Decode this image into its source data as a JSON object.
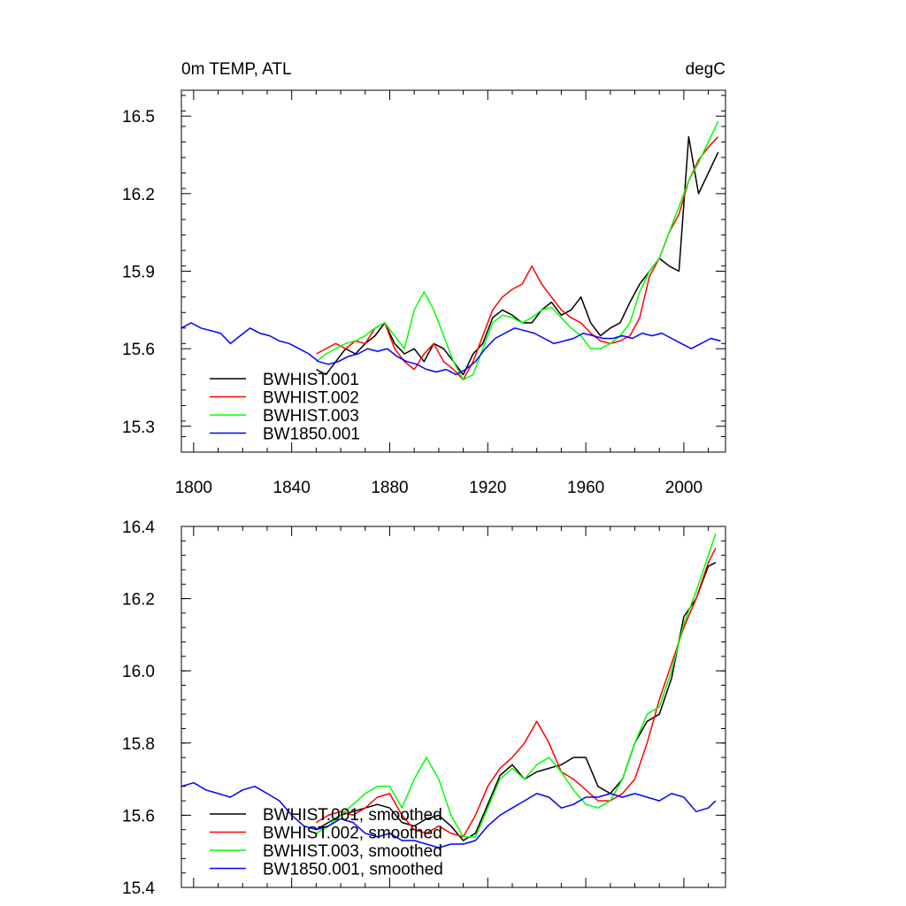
{
  "chart_data": [
    {
      "type": "line",
      "title_left": "0m TEMP, ATL",
      "title_right": "degC",
      "xlim": [
        1795,
        2017
      ],
      "ylim": [
        15.2,
        16.6
      ],
      "x_ticks": [
        1800,
        1840,
        1880,
        1920,
        1960,
        2000
      ],
      "x_tick_labels": [
        "1800",
        "1840",
        "1880",
        "1920",
        "1960",
        "2000"
      ],
      "y_ticks": [
        15.3,
        15.6,
        15.9,
        16.2,
        16.5
      ],
      "y_tick_labels": [
        "15.3",
        "15.6",
        "15.9",
        "16.2",
        "16.5"
      ],
      "legend_position": "bottom-left",
      "series": [
        {
          "name": "BWHIST.001",
          "color": "#000000",
          "x": [
            1850,
            1854,
            1858,
            1862,
            1866,
            1870,
            1874,
            1878,
            1882,
            1886,
            1890,
            1894,
            1898,
            1902,
            1906,
            1910,
            1914,
            1918,
            1922,
            1926,
            1930,
            1934,
            1938,
            1942,
            1946,
            1950,
            1954,
            1958,
            1962,
            1966,
            1970,
            1974,
            1978,
            1982,
            1986,
            1990,
            1994,
            1998,
            2002,
            2006,
            2010,
            2014
          ],
          "y": [
            15.52,
            15.5,
            15.55,
            15.6,
            15.58,
            15.62,
            15.65,
            15.7,
            15.62,
            15.58,
            15.6,
            15.55,
            15.62,
            15.6,
            15.55,
            15.5,
            15.58,
            15.62,
            15.72,
            15.75,
            15.73,
            15.7,
            15.7,
            15.75,
            15.78,
            15.73,
            15.75,
            15.8,
            15.7,
            15.65,
            15.68,
            15.7,
            15.78,
            15.85,
            15.9,
            15.95,
            15.92,
            15.9,
            16.42,
            16.2,
            16.28,
            16.36
          ]
        },
        {
          "name": "BWHIST.002",
          "color": "#ff0000",
          "x": [
            1850,
            1854,
            1858,
            1862,
            1866,
            1870,
            1874,
            1878,
            1882,
            1886,
            1890,
            1894,
            1898,
            1902,
            1906,
            1910,
            1914,
            1918,
            1922,
            1926,
            1930,
            1934,
            1938,
            1942,
            1946,
            1950,
            1954,
            1958,
            1962,
            1966,
            1970,
            1974,
            1978,
            1982,
            1986,
            1990,
            1994,
            1998,
            2002,
            2006,
            2010,
            2014
          ],
          "y": [
            15.58,
            15.6,
            15.62,
            15.6,
            15.63,
            15.62,
            15.68,
            15.7,
            15.6,
            15.55,
            15.52,
            15.58,
            15.62,
            15.55,
            15.52,
            15.48,
            15.55,
            15.65,
            15.75,
            15.8,
            15.83,
            15.85,
            15.92,
            15.85,
            15.8,
            15.75,
            15.72,
            15.7,
            15.66,
            15.63,
            15.62,
            15.63,
            15.65,
            15.72,
            15.88,
            15.95,
            16.05,
            16.12,
            16.25,
            16.33,
            16.38,
            16.42
          ]
        },
        {
          "name": "BWHIST.003",
          "color": "#00ff00",
          "x": [
            1850,
            1854,
            1858,
            1862,
            1866,
            1870,
            1874,
            1878,
            1882,
            1886,
            1890,
            1894,
            1898,
            1902,
            1906,
            1910,
            1914,
            1918,
            1922,
            1926,
            1930,
            1934,
            1938,
            1942,
            1946,
            1950,
            1954,
            1958,
            1962,
            1966,
            1970,
            1974,
            1978,
            1982,
            1986,
            1990,
            1994,
            1998,
            2002,
            2006,
            2010,
            2014
          ],
          "y": [
            15.55,
            15.58,
            15.6,
            15.62,
            15.63,
            15.65,
            15.68,
            15.7,
            15.65,
            15.6,
            15.75,
            15.82,
            15.75,
            15.65,
            15.55,
            15.48,
            15.5,
            15.6,
            15.7,
            15.73,
            15.72,
            15.7,
            15.72,
            15.75,
            15.76,
            15.72,
            15.68,
            15.65,
            15.6,
            15.6,
            15.62,
            15.65,
            15.7,
            15.82,
            15.9,
            15.95,
            16.05,
            16.15,
            16.25,
            16.32,
            16.4,
            16.48
          ]
        },
        {
          "name": "BW1850.001",
          "color": "#0000ff",
          "x": [
            1795,
            1799,
            1803,
            1807,
            1811,
            1815,
            1819,
            1823,
            1827,
            1831,
            1835,
            1839,
            1843,
            1847,
            1851,
            1855,
            1859,
            1863,
            1867,
            1871,
            1875,
            1879,
            1883,
            1887,
            1891,
            1895,
            1899,
            1903,
            1907,
            1911,
            1915,
            1919,
            1923,
            1927,
            1931,
            1935,
            1939,
            1943,
            1947,
            1951,
            1955,
            1959,
            1963,
            1967,
            1971,
            1975,
            1979,
            1983,
            1987,
            1991,
            1995,
            1999,
            2003,
            2007,
            2011,
            2015
          ],
          "y": [
            15.68,
            15.7,
            15.68,
            15.67,
            15.66,
            15.62,
            15.65,
            15.68,
            15.66,
            15.65,
            15.63,
            15.62,
            15.6,
            15.58,
            15.55,
            15.54,
            15.55,
            15.57,
            15.58,
            15.6,
            15.59,
            15.6,
            15.57,
            15.55,
            15.54,
            15.52,
            15.51,
            15.52,
            15.5,
            15.52,
            15.55,
            15.6,
            15.64,
            15.66,
            15.68,
            15.67,
            15.66,
            15.64,
            15.62,
            15.63,
            15.64,
            15.66,
            15.65,
            15.64,
            15.64,
            15.65,
            15.64,
            15.66,
            15.65,
            15.66,
            15.64,
            15.62,
            15.6,
            15.62,
            15.64,
            15.63
          ]
        }
      ]
    },
    {
      "type": "line",
      "xlim": [
        1795,
        2017
      ],
      "ylim": [
        15.4,
        16.4
      ],
      "x_ticks": [
        1800,
        1840,
        1880,
        1920,
        1960,
        2000
      ],
      "y_ticks": [
        15.4,
        15.6,
        15.8,
        16.0,
        16.2,
        16.4
      ],
      "y_tick_labels": [
        "15.4",
        "15.6",
        "15.8",
        "16.0",
        "16.2",
        "16.4"
      ],
      "legend_position": "bottom-left",
      "series": [
        {
          "name": "BWHIST.001, smoothed",
          "color": "#000000",
          "x": [
            1850,
            1855,
            1860,
            1865,
            1870,
            1875,
            1880,
            1885,
            1890,
            1895,
            1900,
            1905,
            1910,
            1915,
            1920,
            1925,
            1930,
            1935,
            1940,
            1945,
            1950,
            1955,
            1960,
            1965,
            1970,
            1975,
            1980,
            1985,
            1990,
            1995,
            2000,
            2005,
            2010,
            2013
          ],
          "y": [
            15.56,
            15.58,
            15.6,
            15.61,
            15.62,
            15.63,
            15.62,
            15.58,
            15.57,
            15.59,
            15.6,
            15.57,
            15.53,
            15.55,
            15.63,
            15.71,
            15.74,
            15.7,
            15.72,
            15.73,
            15.74,
            15.76,
            15.76,
            15.68,
            15.66,
            15.7,
            15.8,
            15.86,
            15.88,
            15.98,
            16.15,
            16.2,
            16.29,
            16.3
          ]
        },
        {
          "name": "BWHIST.002, smoothed",
          "color": "#ff0000",
          "x": [
            1850,
            1855,
            1860,
            1865,
            1870,
            1875,
            1880,
            1885,
            1890,
            1895,
            1900,
            1905,
            1910,
            1915,
            1920,
            1925,
            1930,
            1935,
            1940,
            1945,
            1950,
            1955,
            1960,
            1965,
            1970,
            1975,
            1980,
            1985,
            1990,
            1995,
            2000,
            2005,
            2010,
            2013
          ],
          "y": [
            15.58,
            15.6,
            15.61,
            15.6,
            15.62,
            15.65,
            15.66,
            15.6,
            15.56,
            15.55,
            15.57,
            15.55,
            15.54,
            15.6,
            15.68,
            15.73,
            15.76,
            15.8,
            15.86,
            15.8,
            15.72,
            15.7,
            15.67,
            15.64,
            15.64,
            15.66,
            15.7,
            15.8,
            15.92,
            16.02,
            16.12,
            16.2,
            16.3,
            16.34
          ]
        },
        {
          "name": "BWHIST.003, smoothed",
          "color": "#00ff00",
          "x": [
            1850,
            1855,
            1860,
            1865,
            1870,
            1875,
            1880,
            1885,
            1890,
            1895,
            1900,
            1905,
            1910,
            1915,
            1920,
            1925,
            1930,
            1935,
            1940,
            1945,
            1950,
            1955,
            1960,
            1965,
            1970,
            1975,
            1980,
            1985,
            1990,
            1995,
            2000,
            2005,
            2010,
            2013
          ],
          "y": [
            15.55,
            15.57,
            15.6,
            15.63,
            15.66,
            15.68,
            15.68,
            15.62,
            15.7,
            15.76,
            15.7,
            15.6,
            15.54,
            15.54,
            15.62,
            15.7,
            15.73,
            15.7,
            15.74,
            15.76,
            15.72,
            15.67,
            15.63,
            15.62,
            15.64,
            15.7,
            15.8,
            15.88,
            15.9,
            16.0,
            16.13,
            16.22,
            16.32,
            16.38
          ]
        },
        {
          "name": "BW1850.001, smoothed",
          "color": "#0000ff",
          "x": [
            1795,
            1800,
            1805,
            1810,
            1815,
            1820,
            1825,
            1830,
            1835,
            1840,
            1845,
            1850,
            1855,
            1860,
            1865,
            1870,
            1875,
            1880,
            1885,
            1890,
            1895,
            1900,
            1905,
            1910,
            1915,
            1920,
            1925,
            1930,
            1935,
            1940,
            1945,
            1950,
            1955,
            1960,
            1965,
            1970,
            1975,
            1980,
            1985,
            1990,
            1995,
            2000,
            2005,
            2010,
            2013
          ],
          "y": [
            15.68,
            15.69,
            15.67,
            15.66,
            15.65,
            15.67,
            15.68,
            15.66,
            15.64,
            15.6,
            15.57,
            15.56,
            15.57,
            15.59,
            15.58,
            15.55,
            15.54,
            15.55,
            15.53,
            15.53,
            15.52,
            15.51,
            15.52,
            15.52,
            15.53,
            15.57,
            15.6,
            15.62,
            15.64,
            15.66,
            15.65,
            15.62,
            15.63,
            15.65,
            15.65,
            15.66,
            15.65,
            15.66,
            15.65,
            15.64,
            15.66,
            15.65,
            15.61,
            15.62,
            15.64
          ]
        }
      ]
    }
  ]
}
